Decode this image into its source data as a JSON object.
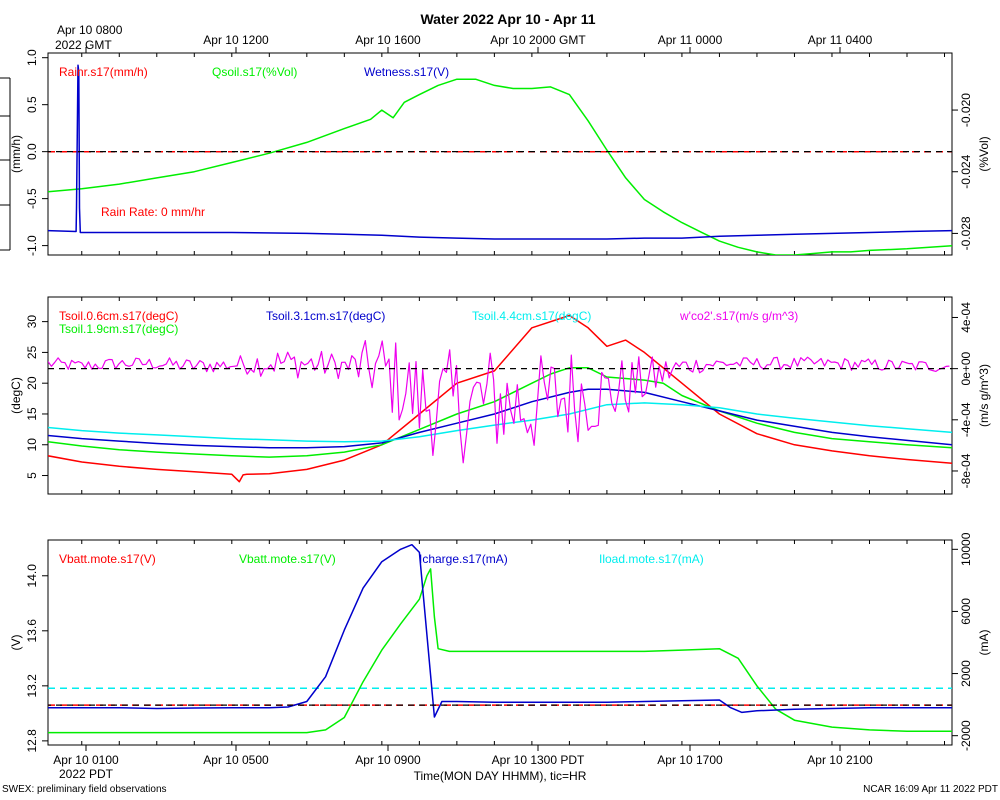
{
  "figure": {
    "title": "Water 2022 Apr 10 - Apr 11",
    "top_axis": {
      "labels": [
        {
          "line1": "Apr 10 0800",
          "line2": "2022 GMT"
        },
        {
          "line1": "Apr 10 1200",
          "line2": ""
        },
        {
          "line1": "Apr 10 1600",
          "line2": ""
        },
        {
          "line1": "Apr 10 2000 GMT",
          "line2": ""
        },
        {
          "line1": "Apr 11 0000",
          "line2": ""
        },
        {
          "line1": "Apr 11 0400",
          "line2": ""
        }
      ]
    },
    "bottom_axis": {
      "labels": [
        {
          "line1": "Apr 10 0100",
          "line2": "2022 PDT"
        },
        {
          "line1": "Apr 10 0500",
          "line2": ""
        },
        {
          "line1": "Apr 10 0900",
          "line2": ""
        },
        {
          "line1": "Apr 10 1300 PDT",
          "line2": ""
        },
        {
          "line1": "Apr 10 1700",
          "line2": ""
        },
        {
          "line1": "Apr 10 2100",
          "line2": ""
        }
      ],
      "title": "Time(MON DAY HHMM), tic=HR"
    },
    "footer_left": "SWEX: preliminary field observations",
    "footer_right": "NCAR 16:09 Apr 11 2022 PDT",
    "zero_line_color": "#000000",
    "colors": {
      "red": "#ff0000",
      "green": "#00ee00",
      "blue": "#0000cc",
      "cyan": "#00eeee",
      "magenta": "#ee00ee",
      "axes": "#000000"
    }
  },
  "chart_data": [
    {
      "type": "line",
      "title": "",
      "x_unit": "hours since Apr 10 0000 PDT",
      "xlim": [
        0.1,
        24.2
      ],
      "left_axis": {
        "label": "(mm/h)",
        "ylim": [
          -1.1,
          1.05
        ],
        "ticks": [
          "1.0",
          "0.5",
          "0.0",
          "-0.5",
          "-1.0"
        ],
        "tick_values": [
          1.0,
          0.5,
          0.0,
          -0.5,
          -1.0
        ]
      },
      "right_axis": {
        "label": "(%Vol)",
        "ylim": [
          -0.0294,
          -0.0163
        ],
        "ticks": [
          "-0.020",
          "-0.024",
          "-0.028"
        ],
        "tick_values": [
          -0.02,
          -0.024,
          -0.028
        ]
      },
      "legend": [
        {
          "text": "Rainr.s17(mm/h)",
          "color": "#ff0000"
        },
        {
          "text": "Qsoil.s17(%Vol)",
          "color": "#00ee00"
        },
        {
          "text": "Wetness.s17(V)",
          "color": "#0000cc"
        }
      ],
      "annotation": {
        "text": "Rain Rate: 0 mm/hr",
        "color": "#ff0000"
      },
      "series": [
        {
          "name": "Rainr.s17(mm/h)",
          "axis": "left",
          "color": "#ff0000",
          "dashed": true,
          "x": [
            0.1,
            24.2
          ],
          "y": [
            0.0,
            0.0
          ]
        },
        {
          "name": "Qsoil.s17(%Vol)",
          "axis": "right",
          "color": "#00ee00",
          "x": [
            0.1,
            1,
            2,
            3,
            4,
            5,
            6,
            7,
            8,
            8.7,
            9,
            9.3,
            9.6,
            10,
            10.5,
            11,
            11.5,
            12,
            12.5,
            13,
            13.5,
            14,
            14.5,
            15,
            15.5,
            16,
            16.5,
            17,
            17.5,
            18,
            18.5,
            19,
            19.5,
            20,
            20.5,
            21,
            21.5,
            22,
            23,
            24.2
          ],
          "y": [
            -0.0253,
            -0.0251,
            -0.0248,
            -0.0244,
            -0.024,
            -0.0234,
            -0.0228,
            -0.0221,
            -0.0212,
            -0.0206,
            -0.02,
            -0.0205,
            -0.0195,
            -0.019,
            -0.0184,
            -0.018,
            -0.018,
            -0.0184,
            -0.0186,
            -0.0186,
            -0.0185,
            -0.019,
            -0.0207,
            -0.0226,
            -0.0244,
            -0.0258,
            -0.0266,
            -0.0273,
            -0.0279,
            -0.0285,
            -0.0289,
            -0.0292,
            -0.0294,
            -0.0294,
            -0.0293,
            -0.0292,
            -0.0292,
            -0.0291,
            -0.029,
            -0.0288
          ]
        },
        {
          "name": "Wetness.s17(V)",
          "axis": "left",
          "color": "#0000cc",
          "x": [
            0.1,
            0.85,
            0.86,
            0.9,
            0.92,
            0.94,
            0.96,
            1.5,
            3,
            5,
            7,
            8,
            9,
            10,
            11,
            12,
            13,
            14,
            15,
            16,
            17,
            18,
            19,
            20,
            21,
            22,
            23,
            24.2
          ],
          "y": [
            -0.84,
            -0.85,
            -0.6,
            0.92,
            0.85,
            -0.6,
            -0.86,
            -0.86,
            -0.86,
            -0.86,
            -0.87,
            -0.88,
            -0.89,
            -0.91,
            -0.92,
            -0.93,
            -0.93,
            -0.93,
            -0.93,
            -0.92,
            -0.92,
            -0.9,
            -0.89,
            -0.88,
            -0.87,
            -0.86,
            -0.85,
            -0.84
          ]
        }
      ]
    },
    {
      "type": "line",
      "title": "",
      "x_unit": "hours since Apr 10 0000 PDT",
      "xlim": [
        0.1,
        24.2
      ],
      "left_axis": {
        "label": "(degC)",
        "ylim": [
          2,
          34
        ],
        "ticks": [
          "30",
          "25",
          "20",
          "15",
          "10",
          "5"
        ],
        "tick_values": [
          30,
          25,
          20,
          15,
          10,
          5
        ]
      },
      "right_axis": {
        "label": "(m/s g/m^3)",
        "ylim": [
          -0.00098,
          0.00056
        ],
        "ticks": [
          "4e-04",
          "0e+00",
          "-4e-04",
          "-8e-04"
        ],
        "tick_values": [
          0.0004,
          0.0,
          -0.0004,
          -0.0008
        ]
      },
      "legend": [
        {
          "text": "Tsoil.0.6cm.s17(degC)",
          "color": "#ff0000"
        },
        {
          "text": "Tsoil.1.9cm.s17(degC)",
          "color": "#00ee00"
        },
        {
          "text": "Tsoil.3.1cm.s17(degC)",
          "color": "#0000cc"
        },
        {
          "text": "Tsoil.4.4cm.s17(degC)",
          "color": "#00eeee"
        },
        {
          "text": "w'co2'.s17(m/s g/m^3)",
          "color": "#ee00ee"
        }
      ],
      "series": [
        {
          "name": "Tsoil.0.6cm.s17(degC)",
          "axis": "left",
          "color": "#ff0000",
          "x": [
            0.1,
            1,
            2,
            3,
            4,
            5,
            5.2,
            5.3,
            5.4,
            6,
            7,
            8,
            9,
            10,
            11,
            12,
            13,
            14,
            14.5,
            15,
            15.5,
            16,
            17,
            18,
            19,
            20,
            21,
            22,
            23,
            24.2
          ],
          "y": [
            8.2,
            7.2,
            6.5,
            6.0,
            5.6,
            5.2,
            4.0,
            5.1,
            5.2,
            5.3,
            6.0,
            7.5,
            10.0,
            15.0,
            20.0,
            22.0,
            29.0,
            31.0,
            29.0,
            26.0,
            27.0,
            25.0,
            20.0,
            15.0,
            11.8,
            10.0,
            9.0,
            8.2,
            7.6,
            7.0
          ]
        },
        {
          "name": "Tsoil.1.9cm.s17(degC)",
          "axis": "left",
          "color": "#00ee00",
          "x": [
            0.1,
            1,
            2,
            3,
            4,
            5,
            6,
            7,
            8,
            9,
            10,
            11,
            12,
            13,
            13.5,
            14,
            14.5,
            15,
            16,
            16.5,
            17,
            18,
            19,
            20,
            21,
            22,
            23,
            24.2
          ],
          "y": [
            10.5,
            9.8,
            9.2,
            8.8,
            8.5,
            8.2,
            8.0,
            8.2,
            8.8,
            10.0,
            12.5,
            15.0,
            17.0,
            20.0,
            21.5,
            22.5,
            22.5,
            21.0,
            20.5,
            20.0,
            18.0,
            15.5,
            13.5,
            12.0,
            11.0,
            10.5,
            10.0,
            9.5
          ]
        },
        {
          "name": "Tsoil.3.1cm.s17(degC)",
          "axis": "left",
          "color": "#0000cc",
          "x": [
            0.1,
            1,
            2,
            3,
            4,
            5,
            6,
            7,
            8,
            9,
            10,
            11,
            12,
            13,
            14,
            14.5,
            15,
            16,
            17,
            18,
            19,
            20,
            21,
            22,
            23,
            24.2
          ],
          "y": [
            11.5,
            11.0,
            10.6,
            10.2,
            9.9,
            9.7,
            9.5,
            9.5,
            9.7,
            10.3,
            12.0,
            13.5,
            15.0,
            17.0,
            18.5,
            19.0,
            19.0,
            18.5,
            17.0,
            15.5,
            14.0,
            13.0,
            12.0,
            11.3,
            10.7,
            10.0
          ]
        },
        {
          "name": "Tsoil.4.4cm.s17(degC)",
          "axis": "left",
          "color": "#00eeee",
          "x": [
            0.1,
            1,
            2,
            3,
            4,
            5,
            6,
            7,
            8,
            9,
            10,
            11,
            12,
            13,
            14,
            15,
            16,
            17,
            18,
            19,
            20,
            21,
            22,
            23,
            24.2
          ],
          "y": [
            12.8,
            12.3,
            11.9,
            11.6,
            11.3,
            11.0,
            10.8,
            10.6,
            10.5,
            10.6,
            11.3,
            12.3,
            13.2,
            14.0,
            15.0,
            16.5,
            16.8,
            16.5,
            16.0,
            15.0,
            14.3,
            13.7,
            13.1,
            12.6,
            12.0
          ]
        },
        {
          "name": "w'co2'.s17(m/s g/m^3)",
          "axis": "right",
          "color": "#ee00ee",
          "noisy": true,
          "x": [
            0.1,
            1,
            2,
            3,
            4,
            5,
            6,
            7,
            8,
            9,
            10,
            11,
            12,
            13,
            14,
            15,
            16,
            17,
            18,
            19,
            20,
            21,
            22,
            23,
            24.2
          ],
          "y": [
            4e-05,
            2e-05,
            4e-05,
            4e-05,
            2e-05,
            3e-05,
            5e-05,
            4e-05,
            2e-05,
            0.0,
            -0.00025,
            -0.0003,
            -0.00025,
            -0.0003,
            -0.0002,
            -0.0002,
            -0.0001,
            2e-05,
            4e-05,
            4e-05,
            4e-05,
            4e-05,
            3e-05,
            2e-05,
            2e-05
          ],
          "amp": [
            5e-05,
            5e-05,
            5e-05,
            5e-05,
            6e-05,
            6e-05,
            0.00012,
            0.00012,
            0.0001,
            0.0003,
            0.0004,
            0.00045,
            0.00045,
            0.0004,
            0.0004,
            0.0003,
            0.0002,
            8e-05,
            5e-05,
            5e-05,
            5e-05,
            5e-05,
            5e-05,
            5e-05,
            5e-05
          ]
        }
      ]
    },
    {
      "type": "line",
      "title": "",
      "x_unit": "hours since Apr 10 0000 PDT",
      "xlim": [
        0.1,
        24.2
      ],
      "left_axis": {
        "label": "(V)",
        "ylim": [
          12.77,
          14.26
        ],
        "ticks": [
          "14.0",
          "13.6",
          "13.2",
          "12.8"
        ],
        "tick_values": [
          14.0,
          13.6,
          13.2,
          12.8
        ]
      },
      "right_axis": {
        "label": "(mA)",
        "ylim": [
          -2600,
          10600
        ],
        "ticks": [
          "10000",
          "6000",
          "2000",
          "-2000"
        ],
        "tick_values": [
          10000,
          6000,
          2000,
          -2000
        ]
      },
      "legend": [
        {
          "text": "Vbatt.mote.s17(V)",
          "color": "#ff0000"
        },
        {
          "text": "Vbatt.mote.s17(V)",
          "color": "#00ee00"
        },
        {
          "text": "Icharge.s17(mA)",
          "color": "#0000cc"
        },
        {
          "text": "Iload.mote.s17(mA)",
          "color": "#00eeee"
        }
      ],
      "series": [
        {
          "name": "Vbatt.mote.s17(V) (red)",
          "axis": "left",
          "color": "#ff0000",
          "dashed": true,
          "x": [
            0.1,
            24.2
          ],
          "y": [
            13.06,
            13.06
          ]
        },
        {
          "name": "Iload.mote.s17(mA)",
          "axis": "right",
          "color": "#00eeee",
          "dashed": true,
          "x": [
            0.1,
            24.2
          ],
          "y": [
            1050,
            1050
          ]
        },
        {
          "name": "Vbatt.mote.s17(V)",
          "axis": "left",
          "color": "#00ee00",
          "x": [
            0.1,
            1,
            2,
            3,
            4,
            5,
            6,
            7,
            7.5,
            8,
            8.5,
            9,
            9.5,
            10,
            10.2,
            10.3,
            10.4,
            10.5,
            10.8,
            11,
            12,
            13,
            14,
            15,
            16,
            17,
            18,
            18.5,
            19,
            19.5,
            20,
            21,
            22,
            23,
            24.2
          ],
          "y": [
            12.86,
            12.86,
            12.86,
            12.86,
            12.86,
            12.86,
            12.86,
            12.86,
            12.88,
            12.97,
            13.23,
            13.46,
            13.65,
            13.83,
            14.0,
            14.05,
            13.7,
            13.47,
            13.45,
            13.45,
            13.45,
            13.45,
            13.45,
            13.45,
            13.45,
            13.46,
            13.47,
            13.4,
            13.2,
            13.03,
            12.95,
            12.9,
            12.88,
            12.87,
            12.87
          ]
        },
        {
          "name": "Icharge.s17(mA)",
          "axis": "right",
          "color": "#0000cc",
          "x": [
            0.1,
            1,
            2,
            3,
            4,
            5,
            6,
            6.5,
            7,
            7.5,
            8,
            8.5,
            9,
            9.5,
            9.8,
            10,
            10.2,
            10.4,
            10.6,
            10.8,
            11,
            12,
            13,
            14,
            15,
            16,
            17,
            18,
            18.3,
            18.6,
            19,
            20,
            21,
            22,
            23,
            24.2
          ],
          "y": [
            -200,
            -200,
            -200,
            -250,
            -220,
            -200,
            -200,
            -150,
            200,
            1800,
            4800,
            7500,
            9200,
            10000,
            10300,
            9800,
            4500,
            -800,
            200,
            200,
            200,
            150,
            150,
            150,
            150,
            200,
            250,
            300,
            -200,
            -500,
            -400,
            -300,
            -250,
            -200,
            -200,
            -200
          ]
        }
      ]
    }
  ]
}
